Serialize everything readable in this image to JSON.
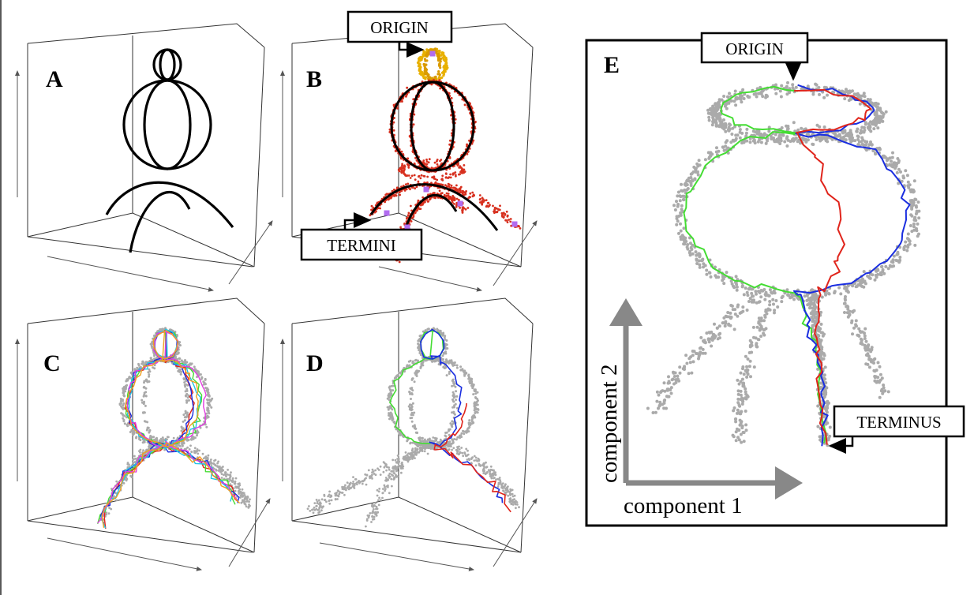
{
  "panels": [
    {
      "letter": "A"
    },
    {
      "letter": "B"
    },
    {
      "letter": "C"
    },
    {
      "letter": "D"
    },
    {
      "letter": "E"
    }
  ],
  "callouts": {
    "b_origin": "ORIGIN",
    "b_termini": "TERMINI",
    "e_origin": "ORIGIN",
    "e_terminus": "TERMINUS"
  },
  "axes": {
    "x_label": "component 1",
    "y_label": "component 2"
  },
  "colors": {
    "skeleton": "#000000",
    "red_points": "#d7301f",
    "yellow_points": "#e8b000",
    "terminal_markers": "#b26cf0",
    "gray_points": "#aaaaaa",
    "path_red": "#e0241b",
    "path_green": "#44dd33",
    "path_blue": "#1a2ee0",
    "path_cyan": "#22c4e6",
    "path_magenta": "#e23ce0",
    "path_orange": "#f0a020"
  }
}
